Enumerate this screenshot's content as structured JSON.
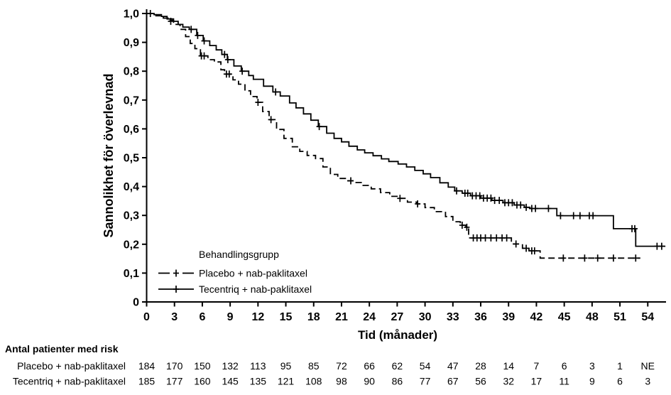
{
  "colors": {
    "ink": "#000000",
    "background": "#ffffff"
  },
  "chart_data": {
    "type": "line",
    "subtype": "kaplan-meier-step",
    "title": "",
    "xlabel": "Tid (månader)",
    "ylabel": "Sannolikhet för överlevnad",
    "xlim": [
      0,
      56.5
    ],
    "ylim": [
      0,
      1.0
    ],
    "grid": false,
    "xticks": [
      0,
      3,
      6,
      9,
      12,
      15,
      18,
      21,
      24,
      27,
      30,
      33,
      36,
      39,
      42,
      45,
      48,
      51,
      54
    ],
    "yticks": [
      {
        "v": 0.0,
        "label": "0"
      },
      {
        "v": 0.1,
        "label": "0,1"
      },
      {
        "v": 0.2,
        "label": "0,2"
      },
      {
        "v": 0.3,
        "label": "0,3"
      },
      {
        "v": 0.4,
        "label": "0,4"
      },
      {
        "v": 0.5,
        "label": "0,5"
      },
      {
        "v": 0.6,
        "label": "0,6"
      },
      {
        "v": 0.7,
        "label": "0,7"
      },
      {
        "v": 0.8,
        "label": "0,8"
      },
      {
        "v": 0.9,
        "label": "0,9"
      },
      {
        "v": 1.0,
        "label": "1,0"
      }
    ],
    "legend": {
      "title": "Behandlingsgrupp",
      "position": "inside-bottom-left",
      "entries": [
        {
          "label": "Placebo + nab-paklitaxel",
          "line": "dashed",
          "marker": "plus"
        },
        {
          "label": "Tecentriq + nab-paklitaxel",
          "line": "solid",
          "marker": "plus"
        }
      ]
    },
    "series": [
      {
        "name": "Placebo + nab-paklitaxel",
        "line": "dashed",
        "end_time": 53.2,
        "points": [
          [
            0,
            1.0
          ],
          [
            1.0,
            0.992
          ],
          [
            1.8,
            0.984
          ],
          [
            2.3,
            0.976
          ],
          [
            2.9,
            0.962
          ],
          [
            3.6,
            0.945
          ],
          [
            4.2,
            0.92
          ],
          [
            4.7,
            0.896
          ],
          [
            5.2,
            0.878
          ],
          [
            5.8,
            0.853
          ],
          [
            6.6,
            0.84
          ],
          [
            7.3,
            0.832
          ],
          [
            8.0,
            0.805
          ],
          [
            8.4,
            0.79
          ],
          [
            9.3,
            0.77
          ],
          [
            9.9,
            0.755
          ],
          [
            10.6,
            0.732
          ],
          [
            11.2,
            0.712
          ],
          [
            11.9,
            0.692
          ],
          [
            12.5,
            0.66
          ],
          [
            13.2,
            0.632
          ],
          [
            14.0,
            0.598
          ],
          [
            14.8,
            0.567
          ],
          [
            15.7,
            0.538
          ],
          [
            16.5,
            0.522
          ],
          [
            17.3,
            0.508
          ],
          [
            18.2,
            0.497
          ],
          [
            19.0,
            0.468
          ],
          [
            19.8,
            0.442
          ],
          [
            20.6,
            0.428
          ],
          [
            21.6,
            0.42
          ],
          [
            22.3,
            0.414
          ],
          [
            23.2,
            0.404
          ],
          [
            24.2,
            0.392
          ],
          [
            25.2,
            0.379
          ],
          [
            26.2,
            0.366
          ],
          [
            27.1,
            0.359
          ],
          [
            28.1,
            0.346
          ],
          [
            29.1,
            0.34
          ],
          [
            30.0,
            0.327
          ],
          [
            31.0,
            0.313
          ],
          [
            32.2,
            0.296
          ],
          [
            33.0,
            0.278
          ],
          [
            33.8,
            0.266
          ],
          [
            34.4,
            0.259
          ],
          [
            34.7,
            0.222
          ],
          [
            39.3,
            0.201
          ],
          [
            40.5,
            0.186
          ],
          [
            41.2,
            0.177
          ],
          [
            42.4,
            0.152
          ]
        ],
        "censors": [
          [
            5.9,
            0.853
          ],
          [
            6.2,
            0.853
          ],
          [
            8.6,
            0.79
          ],
          [
            8.9,
            0.79
          ],
          [
            12.0,
            0.692
          ],
          [
            13.4,
            0.632
          ],
          [
            22.0,
            0.42
          ],
          [
            27.3,
            0.359
          ],
          [
            29.2,
            0.34
          ],
          [
            34.0,
            0.266
          ],
          [
            34.5,
            0.259
          ],
          [
            35.2,
            0.222
          ],
          [
            35.6,
            0.222
          ],
          [
            36.0,
            0.222
          ],
          [
            36.5,
            0.222
          ],
          [
            37.1,
            0.222
          ],
          [
            37.7,
            0.222
          ],
          [
            38.3,
            0.222
          ],
          [
            38.8,
            0.222
          ],
          [
            39.8,
            0.201
          ],
          [
            40.9,
            0.186
          ],
          [
            41.5,
            0.177
          ],
          [
            41.8,
            0.177
          ],
          [
            44.9,
            0.152
          ],
          [
            47.2,
            0.152
          ],
          [
            48.6,
            0.152
          ],
          [
            50.3,
            0.152
          ],
          [
            52.7,
            0.152
          ]
        ]
      },
      {
        "name": "Tecentriq + nab-paklitaxel",
        "line": "solid",
        "end_time": 55.9,
        "points": [
          [
            0,
            1.0
          ],
          [
            0.8,
            0.996
          ],
          [
            1.6,
            0.99
          ],
          [
            2.2,
            0.981
          ],
          [
            2.9,
            0.973
          ],
          [
            3.4,
            0.962
          ],
          [
            3.9,
            0.953
          ],
          [
            4.6,
            0.945
          ],
          [
            5.4,
            0.924
          ],
          [
            6.1,
            0.905
          ],
          [
            6.8,
            0.889
          ],
          [
            7.5,
            0.874
          ],
          [
            8.1,
            0.858
          ],
          [
            8.7,
            0.84
          ],
          [
            9.4,
            0.818
          ],
          [
            10.2,
            0.8
          ],
          [
            11.0,
            0.785
          ],
          [
            11.5,
            0.772
          ],
          [
            12.6,
            0.748
          ],
          [
            13.6,
            0.728
          ],
          [
            14.4,
            0.714
          ],
          [
            15.4,
            0.69
          ],
          [
            16.1,
            0.673
          ],
          [
            16.9,
            0.652
          ],
          [
            17.7,
            0.63
          ],
          [
            18.5,
            0.608
          ],
          [
            19.4,
            0.585
          ],
          [
            20.2,
            0.567
          ],
          [
            21.0,
            0.555
          ],
          [
            21.8,
            0.54
          ],
          [
            22.7,
            0.527
          ],
          [
            23.5,
            0.517
          ],
          [
            24.4,
            0.507
          ],
          [
            25.3,
            0.496
          ],
          [
            26.1,
            0.487
          ],
          [
            27.1,
            0.478
          ],
          [
            28.0,
            0.468
          ],
          [
            28.9,
            0.456
          ],
          [
            29.8,
            0.444
          ],
          [
            30.6,
            0.431
          ],
          [
            31.6,
            0.413
          ],
          [
            32.5,
            0.398
          ],
          [
            33.2,
            0.385
          ],
          [
            34.0,
            0.377
          ],
          [
            34.9,
            0.368
          ],
          [
            36.0,
            0.36
          ],
          [
            37.2,
            0.352
          ],
          [
            38.4,
            0.344
          ],
          [
            39.6,
            0.336
          ],
          [
            40.7,
            0.328
          ],
          [
            41.3,
            0.324
          ],
          [
            44.2,
            0.299
          ],
          [
            50.3,
            0.254
          ],
          [
            52.7,
            0.193
          ]
        ],
        "censors": [
          [
            0.4,
            1.0
          ],
          [
            2.6,
            0.973
          ],
          [
            4.8,
            0.945
          ],
          [
            5.5,
            0.924
          ],
          [
            6.2,
            0.905
          ],
          [
            8.4,
            0.858
          ],
          [
            8.75,
            0.84
          ],
          [
            10.3,
            0.8
          ],
          [
            13.9,
            0.728
          ],
          [
            18.6,
            0.608
          ],
          [
            33.4,
            0.385
          ],
          [
            34.3,
            0.377
          ],
          [
            34.6,
            0.377
          ],
          [
            35.1,
            0.368
          ],
          [
            35.5,
            0.368
          ],
          [
            35.9,
            0.368
          ],
          [
            36.3,
            0.36
          ],
          [
            36.7,
            0.36
          ],
          [
            37.1,
            0.36
          ],
          [
            37.5,
            0.352
          ],
          [
            38.0,
            0.352
          ],
          [
            38.6,
            0.344
          ],
          [
            39.0,
            0.344
          ],
          [
            39.4,
            0.344
          ],
          [
            39.9,
            0.336
          ],
          [
            40.3,
            0.336
          ],
          [
            40.9,
            0.328
          ],
          [
            41.5,
            0.324
          ],
          [
            41.9,
            0.324
          ],
          [
            43.3,
            0.324
          ],
          [
            44.6,
            0.299
          ],
          [
            46.0,
            0.299
          ],
          [
            46.7,
            0.299
          ],
          [
            47.7,
            0.299
          ],
          [
            48.1,
            0.299
          ],
          [
            52.3,
            0.254
          ],
          [
            52.6,
            0.254
          ],
          [
            55.0,
            0.193
          ],
          [
            55.5,
            0.193
          ]
        ]
      }
    ]
  },
  "risk_table": {
    "title": "Antal patienter med risk",
    "time_points": [
      0,
      3,
      6,
      9,
      12,
      15,
      18,
      21,
      24,
      27,
      30,
      33,
      36,
      39,
      42,
      45,
      48,
      51,
      54
    ],
    "rows": [
      {
        "label": "Placebo + nab-paklitaxel",
        "values": [
          "184",
          "170",
          "150",
          "132",
          "113",
          "95",
          "85",
          "72",
          "66",
          "62",
          "54",
          "47",
          "28",
          "14",
          "7",
          "6",
          "3",
          "1",
          "NE"
        ]
      },
      {
        "label": "Tecentriq + nab-paklitaxel",
        "values": [
          "185",
          "177",
          "160",
          "145",
          "135",
          "121",
          "108",
          "98",
          "90",
          "86",
          "77",
          "67",
          "56",
          "32",
          "17",
          "11",
          "9",
          "6",
          "3"
        ]
      }
    ]
  }
}
